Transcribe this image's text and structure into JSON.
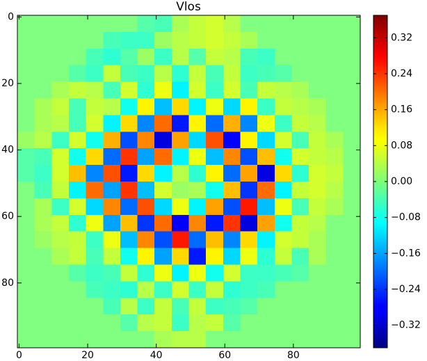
{
  "chart_data": {
    "type": "heatmap",
    "title": "Vlos",
    "colormap": "jet",
    "xlim": [
      -0.5,
      99.5
    ],
    "ylim": [
      99.5,
      -0.5
    ],
    "xticks": [
      0,
      20,
      40,
      60,
      80
    ],
    "yticks": [
      0,
      20,
      40,
      60,
      80
    ],
    "clim": [
      -0.37,
      0.37
    ],
    "cticks": [
      {
        "value": -0.32,
        "label": "−0.32"
      },
      {
        "value": -0.24,
        "label": "−0.24"
      },
      {
        "value": -0.16,
        "label": "−0.16"
      },
      {
        "value": -0.08,
        "label": "−0.08"
      },
      {
        "value": 0,
        "label": "0.00"
      },
      0.08,
      0.16,
      0.24,
      0.32
    ],
    "z": [
      [
        0,
        0,
        0,
        0,
        0,
        0,
        0,
        -0.03,
        -0.04,
        0.03,
        0.05,
        0.06,
        0.04,
        0,
        0,
        0,
        0,
        0,
        0,
        0
      ],
      [
        0,
        0,
        0,
        0,
        0,
        -0.04,
        -0.05,
        -0.05,
        0.02,
        0.04,
        0.05,
        0.06,
        0.05,
        0.03,
        0,
        0,
        0,
        0,
        0,
        0
      ],
      [
        0,
        0,
        0,
        0,
        -0.04,
        -0.06,
        -0.03,
        0.02,
        -0.05,
        0.04,
        -0.03,
        0.05,
        0.04,
        -0.04,
        -0.05,
        0,
        0,
        0,
        0,
        0
      ],
      [
        0,
        0,
        0,
        -0.03,
        -0.05,
        0.05,
        -0.04,
        -0.05,
        0.04,
        -0.06,
        0.05,
        -0.04,
        0.05,
        -0.05,
        -0.04,
        -0.03,
        0,
        0,
        0,
        0
      ],
      [
        0,
        0,
        0.03,
        0.05,
        0.04,
        -0.04,
        0.06,
        -0.06,
        0.08,
        -0.1,
        0.06,
        -0.05,
        0.06,
        -0.04,
        0.05,
        0.04,
        0.03,
        0,
        0,
        0
      ],
      [
        0,
        0.03,
        0.05,
        -0.04,
        0.05,
        0.04,
        -0.08,
        0.1,
        -0.14,
        0.12,
        -0.1,
        0.08,
        -0.12,
        0.1,
        -0.05,
        0.05,
        0.04,
        0.03,
        0,
        0
      ],
      [
        0,
        0.03,
        0.04,
        -0.04,
        0.06,
        -0.1,
        0.12,
        -0.18,
        0.2,
        -0.26,
        0.1,
        -0.2,
        0.15,
        -0.18,
        0.08,
        -0.05,
        0.05,
        0.04,
        0,
        0
      ],
      [
        0.02,
        0.04,
        -0.05,
        0.06,
        -0.08,
        0.15,
        -0.22,
        0.18,
        -0.3,
        0.16,
        -0.12,
        0.22,
        -0.28,
        0.1,
        -0.12,
        0.06,
        -0.04,
        0.05,
        0.03,
        0
      ],
      [
        -0.03,
        -0.04,
        0.06,
        -0.08,
        0.12,
        -0.2,
        0.24,
        -0.16,
        0.2,
        -0.1,
        0.08,
        -0.14,
        0.18,
        -0.22,
        0.14,
        -0.08,
        0.06,
        0.05,
        0.04,
        0
      ],
      [
        -0.03,
        -0.05,
        0.06,
        0.14,
        -0.18,
        0.22,
        -0.26,
        0.12,
        -0.1,
        0.04,
        -0.06,
        0.1,
        -0.2,
        0.16,
        -0.3,
        0.12,
        -0.06,
        0.06,
        0.05,
        0
      ],
      [
        0,
        -0.04,
        0.05,
        -0.1,
        0.2,
        -0.16,
        0.24,
        -0.14,
        0.06,
        0.02,
        0.03,
        -0.08,
        0.14,
        -0.24,
        0.2,
        -0.1,
        0.05,
        0.06,
        0.04,
        0
      ],
      [
        0,
        0.03,
        -0.05,
        0.06,
        -0.12,
        0.18,
        -0.2,
        0.22,
        -0.12,
        0.08,
        -0.1,
        0.16,
        -0.22,
        0.26,
        -0.14,
        0.08,
        -0.04,
        0.05,
        0.03,
        0
      ],
      [
        0,
        0.03,
        0.05,
        -0.06,
        0.08,
        -0.16,
        0.14,
        -0.24,
        0.2,
        -0.28,
        0.18,
        -0.26,
        0.24,
        -0.3,
        0.16,
        -0.08,
        0.05,
        0.04,
        0,
        0
      ],
      [
        0,
        0.02,
        0.04,
        0.05,
        -0.05,
        0.08,
        -0.14,
        0.18,
        -0.22,
        0.26,
        -0.2,
        0.14,
        -0.18,
        0.12,
        -0.1,
        0.06,
        0.05,
        0.03,
        0,
        0
      ],
      [
        0,
        0,
        0.03,
        0.05,
        -0.04,
        0.05,
        -0.08,
        0.1,
        -0.16,
        0.12,
        -0.26,
        0.1,
        -0.12,
        0.08,
        -0.06,
        0.05,
        -0.04,
        0.03,
        0,
        0
      ],
      [
        0,
        0,
        0,
        -0.03,
        -0.05,
        -0.04,
        0.05,
        -0.06,
        0.08,
        -0.1,
        0.08,
        -0.08,
        0.06,
        -0.05,
        -0.05,
        -0.04,
        -0.03,
        0,
        0,
        0
      ],
      [
        0,
        0,
        0,
        0,
        -0.04,
        -0.05,
        -0.06,
        0.04,
        -0.05,
        0.06,
        -0.05,
        0.05,
        -0.06,
        -0.05,
        -0.04,
        0,
        0,
        0,
        0,
        0
      ],
      [
        0,
        0,
        0,
        0,
        0,
        -0.04,
        0.04,
        -0.05,
        0.05,
        -0.04,
        0.05,
        -0.05,
        -0.04,
        -0.03,
        0,
        0,
        0,
        0,
        0,
        0
      ],
      [
        0,
        0,
        0,
        0,
        0,
        0,
        -0.03,
        0.04,
        0.05,
        -0.05,
        0.04,
        0.05,
        -0.03,
        0,
        0,
        0,
        0,
        0,
        0,
        0
      ],
      [
        0,
        0,
        0,
        0,
        0,
        0,
        0,
        0,
        0.03,
        0.04,
        0.04,
        0,
        0,
        0,
        0,
        0,
        0,
        0,
        0,
        0
      ]
    ]
  }
}
